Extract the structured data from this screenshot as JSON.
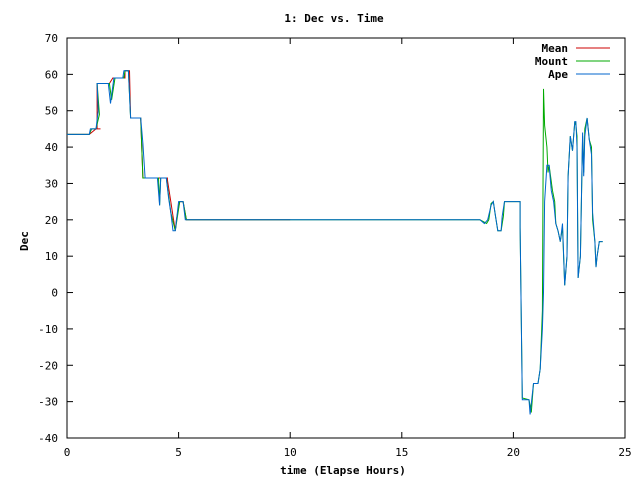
{
  "chart_data": {
    "type": "line",
    "title": "1: Dec vs. Time",
    "xlabel": "time (Elapse Hours)",
    "ylabel": "Dec",
    "xlim": [
      0,
      25
    ],
    "ylim": [
      -40,
      70
    ],
    "xticks": [
      0,
      5,
      10,
      15,
      20,
      25
    ],
    "yticks": [
      -40,
      -30,
      -20,
      -10,
      0,
      10,
      20,
      30,
      40,
      50,
      60,
      70
    ],
    "grid": false,
    "legend_position": "top-right",
    "series": [
      {
        "name": "Mean",
        "color": "#cc0000",
        "points": [
          [
            0,
            43.5
          ],
          [
            1.0,
            43.5
          ],
          [
            1.0,
            43.5
          ],
          [
            1.3,
            45
          ],
          [
            1.3,
            45
          ],
          [
            1.35,
            45
          ],
          [
            1.4,
            45
          ],
          [
            1.35,
            45
          ],
          [
            1.5,
            45
          ],
          [
            1.35,
            45
          ],
          [
            1.35,
            50
          ],
          [
            1.35,
            57.5
          ],
          [
            1.4,
            57.5
          ],
          [
            1.9,
            57.5
          ],
          [
            2.05,
            59
          ],
          [
            2.6,
            59
          ],
          [
            2.6,
            61
          ],
          [
            2.8,
            61
          ],
          [
            2.85,
            48
          ],
          [
            3.3,
            48
          ],
          [
            3.4,
            31.5
          ],
          [
            3.9,
            31.5
          ],
          [
            4.1,
            31.5
          ],
          [
            4.15,
            31.5
          ],
          [
            4.5,
            31.5
          ],
          [
            4.5,
            31
          ],
          [
            4.65,
            25
          ],
          [
            4.75,
            21
          ],
          [
            4.85,
            17
          ],
          [
            4.9,
            20
          ],
          [
            5.05,
            25
          ],
          [
            5.2,
            25
          ],
          [
            5.35,
            20
          ],
          [
            10.0,
            20
          ],
          [
            10.0,
            20
          ]
        ]
      },
      {
        "name": "Mount",
        "color": "#00aa00",
        "points": [
          [
            0,
            43.5
          ],
          [
            1.0,
            43.5
          ],
          [
            1.1,
            45
          ],
          [
            1.3,
            45
          ],
          [
            1.45,
            49
          ],
          [
            1.35,
            57.5
          ],
          [
            1.9,
            57.5
          ],
          [
            2.0,
            53
          ],
          [
            2.15,
            59
          ],
          [
            2.55,
            59
          ],
          [
            2.6,
            61
          ],
          [
            2.75,
            61
          ],
          [
            2.85,
            48
          ],
          [
            3.3,
            48
          ],
          [
            3.4,
            31.5
          ],
          [
            3.9,
            31.5
          ],
          [
            4.1,
            31.5
          ],
          [
            4.15,
            24
          ],
          [
            4.2,
            31.5
          ],
          [
            4.45,
            31.5
          ],
          [
            4.65,
            22
          ],
          [
            4.85,
            17
          ],
          [
            5.05,
            25
          ],
          [
            5.2,
            25
          ],
          [
            5.35,
            20
          ],
          [
            10.0,
            20
          ],
          [
            18.5,
            20
          ],
          [
            18.8,
            19
          ],
          [
            18.9,
            20
          ],
          [
            19.0,
            24.5
          ],
          [
            19.1,
            25
          ],
          [
            19.2,
            21
          ],
          [
            19.3,
            17
          ],
          [
            19.45,
            17
          ],
          [
            19.55,
            21
          ],
          [
            19.6,
            25
          ],
          [
            20.3,
            25
          ],
          [
            20.3,
            18
          ],
          [
            20.4,
            -29
          ],
          [
            20.7,
            -29.5
          ],
          [
            20.8,
            -33
          ],
          [
            20.9,
            -25
          ],
          [
            21.1,
            -25
          ],
          [
            21.2,
            -21
          ],
          [
            21.3,
            -5
          ],
          [
            21.35,
            56
          ],
          [
            21.4,
            46
          ],
          [
            21.5,
            40
          ],
          [
            21.55,
            33
          ],
          [
            21.6,
            35
          ],
          [
            21.75,
            28
          ],
          [
            21.85,
            25
          ],
          [
            21.9,
            19
          ],
          [
            22.0,
            17
          ],
          [
            22.1,
            14
          ],
          [
            22.2,
            18
          ],
          [
            22.3,
            2
          ],
          [
            22.4,
            10
          ],
          [
            22.45,
            32
          ],
          [
            22.55,
            43
          ],
          [
            22.65,
            39
          ],
          [
            22.75,
            47
          ],
          [
            22.8,
            46
          ],
          [
            22.85,
            43
          ],
          [
            22.9,
            4
          ],
          [
            23.0,
            10
          ],
          [
            23.1,
            43
          ],
          [
            23.15,
            33
          ],
          [
            23.2,
            45
          ],
          [
            23.3,
            48
          ],
          [
            23.35,
            45
          ],
          [
            23.4,
            42
          ],
          [
            23.5,
            40
          ],
          [
            23.55,
            20
          ],
          [
            23.65,
            14
          ],
          [
            23.7,
            7
          ],
          [
            23.75,
            10
          ],
          [
            23.85,
            14
          ],
          [
            24.0,
            14
          ]
        ]
      },
      {
        "name": "Ape",
        "color": "#0066cc",
        "points": [
          [
            0,
            43.5
          ],
          [
            1.0,
            43.5
          ],
          [
            1.05,
            45
          ],
          [
            1.3,
            45
          ],
          [
            1.4,
            50
          ],
          [
            1.35,
            57.5
          ],
          [
            1.85,
            57.5
          ],
          [
            1.95,
            52
          ],
          [
            2.1,
            59
          ],
          [
            2.5,
            59
          ],
          [
            2.55,
            61
          ],
          [
            2.75,
            61
          ],
          [
            2.85,
            48
          ],
          [
            3.3,
            48
          ],
          [
            3.4,
            41
          ],
          [
            3.5,
            31.5
          ],
          [
            3.9,
            31.5
          ],
          [
            4.05,
            31.5
          ],
          [
            4.15,
            24
          ],
          [
            4.2,
            31.5
          ],
          [
            4.45,
            31.5
          ],
          [
            4.55,
            26
          ],
          [
            4.65,
            22
          ],
          [
            4.75,
            17
          ],
          [
            4.85,
            17
          ],
          [
            5.0,
            25
          ],
          [
            5.2,
            25
          ],
          [
            5.3,
            20
          ],
          [
            10.0,
            20
          ],
          [
            18.5,
            20
          ],
          [
            18.7,
            19
          ],
          [
            18.85,
            20
          ],
          [
            19.0,
            24
          ],
          [
            19.1,
            25
          ],
          [
            19.2,
            21
          ],
          [
            19.3,
            17
          ],
          [
            19.45,
            17
          ],
          [
            19.5,
            21
          ],
          [
            19.6,
            25
          ],
          [
            20.3,
            25
          ],
          [
            20.3,
            18
          ],
          [
            20.4,
            -29.5
          ],
          [
            20.7,
            -29.5
          ],
          [
            20.75,
            -33.5
          ],
          [
            20.9,
            -25
          ],
          [
            21.1,
            -25
          ],
          [
            21.2,
            -21
          ],
          [
            21.3,
            -10
          ],
          [
            21.35,
            0
          ],
          [
            21.4,
            25
          ],
          [
            21.5,
            35
          ],
          [
            21.6,
            35
          ],
          [
            21.7,
            28
          ],
          [
            21.8,
            25
          ],
          [
            21.9,
            19
          ],
          [
            22.0,
            17
          ],
          [
            22.1,
            14
          ],
          [
            22.2,
            19
          ],
          [
            22.3,
            2
          ],
          [
            22.4,
            10
          ],
          [
            22.45,
            32
          ],
          [
            22.55,
            43
          ],
          [
            22.65,
            39
          ],
          [
            22.75,
            47
          ],
          [
            22.8,
            47
          ],
          [
            22.85,
            40
          ],
          [
            22.9,
            4
          ],
          [
            23.0,
            10
          ],
          [
            23.1,
            44
          ],
          [
            23.15,
            32
          ],
          [
            23.2,
            43
          ],
          [
            23.3,
            48
          ],
          [
            23.35,
            45
          ],
          [
            23.4,
            42
          ],
          [
            23.5,
            38
          ],
          [
            23.55,
            22
          ],
          [
            23.65,
            14
          ],
          [
            23.7,
            7
          ],
          [
            23.75,
            10
          ],
          [
            23.85,
            14
          ],
          [
            24.0,
            14
          ]
        ]
      }
    ]
  }
}
